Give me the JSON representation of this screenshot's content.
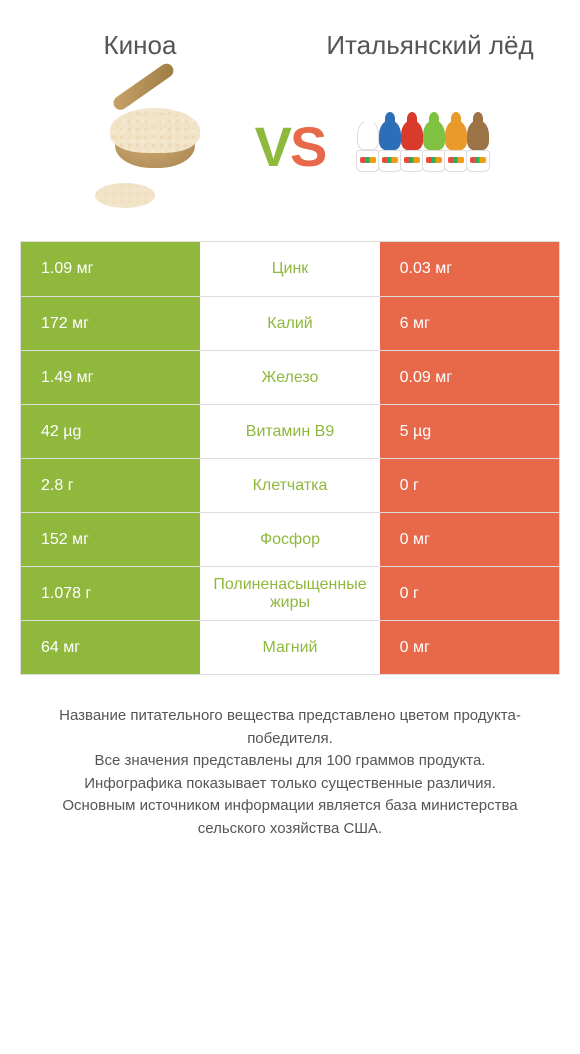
{
  "header": {
    "left_title": "Киноа",
    "right_title": "Итальянский лёд"
  },
  "vs": {
    "v": "V",
    "s": "S"
  },
  "colors": {
    "left_bg": "#8fb83d",
    "right_bg": "#e8694a",
    "mid_text_left": "#8fb83d",
    "mid_text_right": "#e8694a",
    "row_border": "#dddddd"
  },
  "ice_colors": [
    "#ffffff",
    "#2c6fb8",
    "#d93a2b",
    "#7fc241",
    "#e89a2a",
    "#9b7347"
  ],
  "rows": [
    {
      "left": "1.09 мг",
      "mid": "Цинк",
      "right": "0.03 мг",
      "winner": "left"
    },
    {
      "left": "172 мг",
      "mid": "Калий",
      "right": "6 мг",
      "winner": "left"
    },
    {
      "left": "1.49 мг",
      "mid": "Железо",
      "right": "0.09 мг",
      "winner": "left"
    },
    {
      "left": "42 µg",
      "mid": "Витамин B9",
      "right": "5 µg",
      "winner": "left"
    },
    {
      "left": "2.8 г",
      "mid": "Клетчатка",
      "right": "0 г",
      "winner": "left"
    },
    {
      "left": "152 мг",
      "mid": "Фосфор",
      "right": "0 мг",
      "winner": "left"
    },
    {
      "left": "1.078 г",
      "mid": "Полиненасыщенные жиры",
      "right": "0 г",
      "winner": "left"
    },
    {
      "left": "64 мг",
      "mid": "Магний",
      "right": "0 мг",
      "winner": "left"
    }
  ],
  "footer": {
    "line1": "Название питательного вещества представлено цветом продукта-победителя.",
    "line2": "Все значения представлены для 100 граммов продукта.",
    "line3": "Инфографика показывает только существенные различия.",
    "line4": "Основным источником информации является база министерства сельского хозяйства США."
  }
}
